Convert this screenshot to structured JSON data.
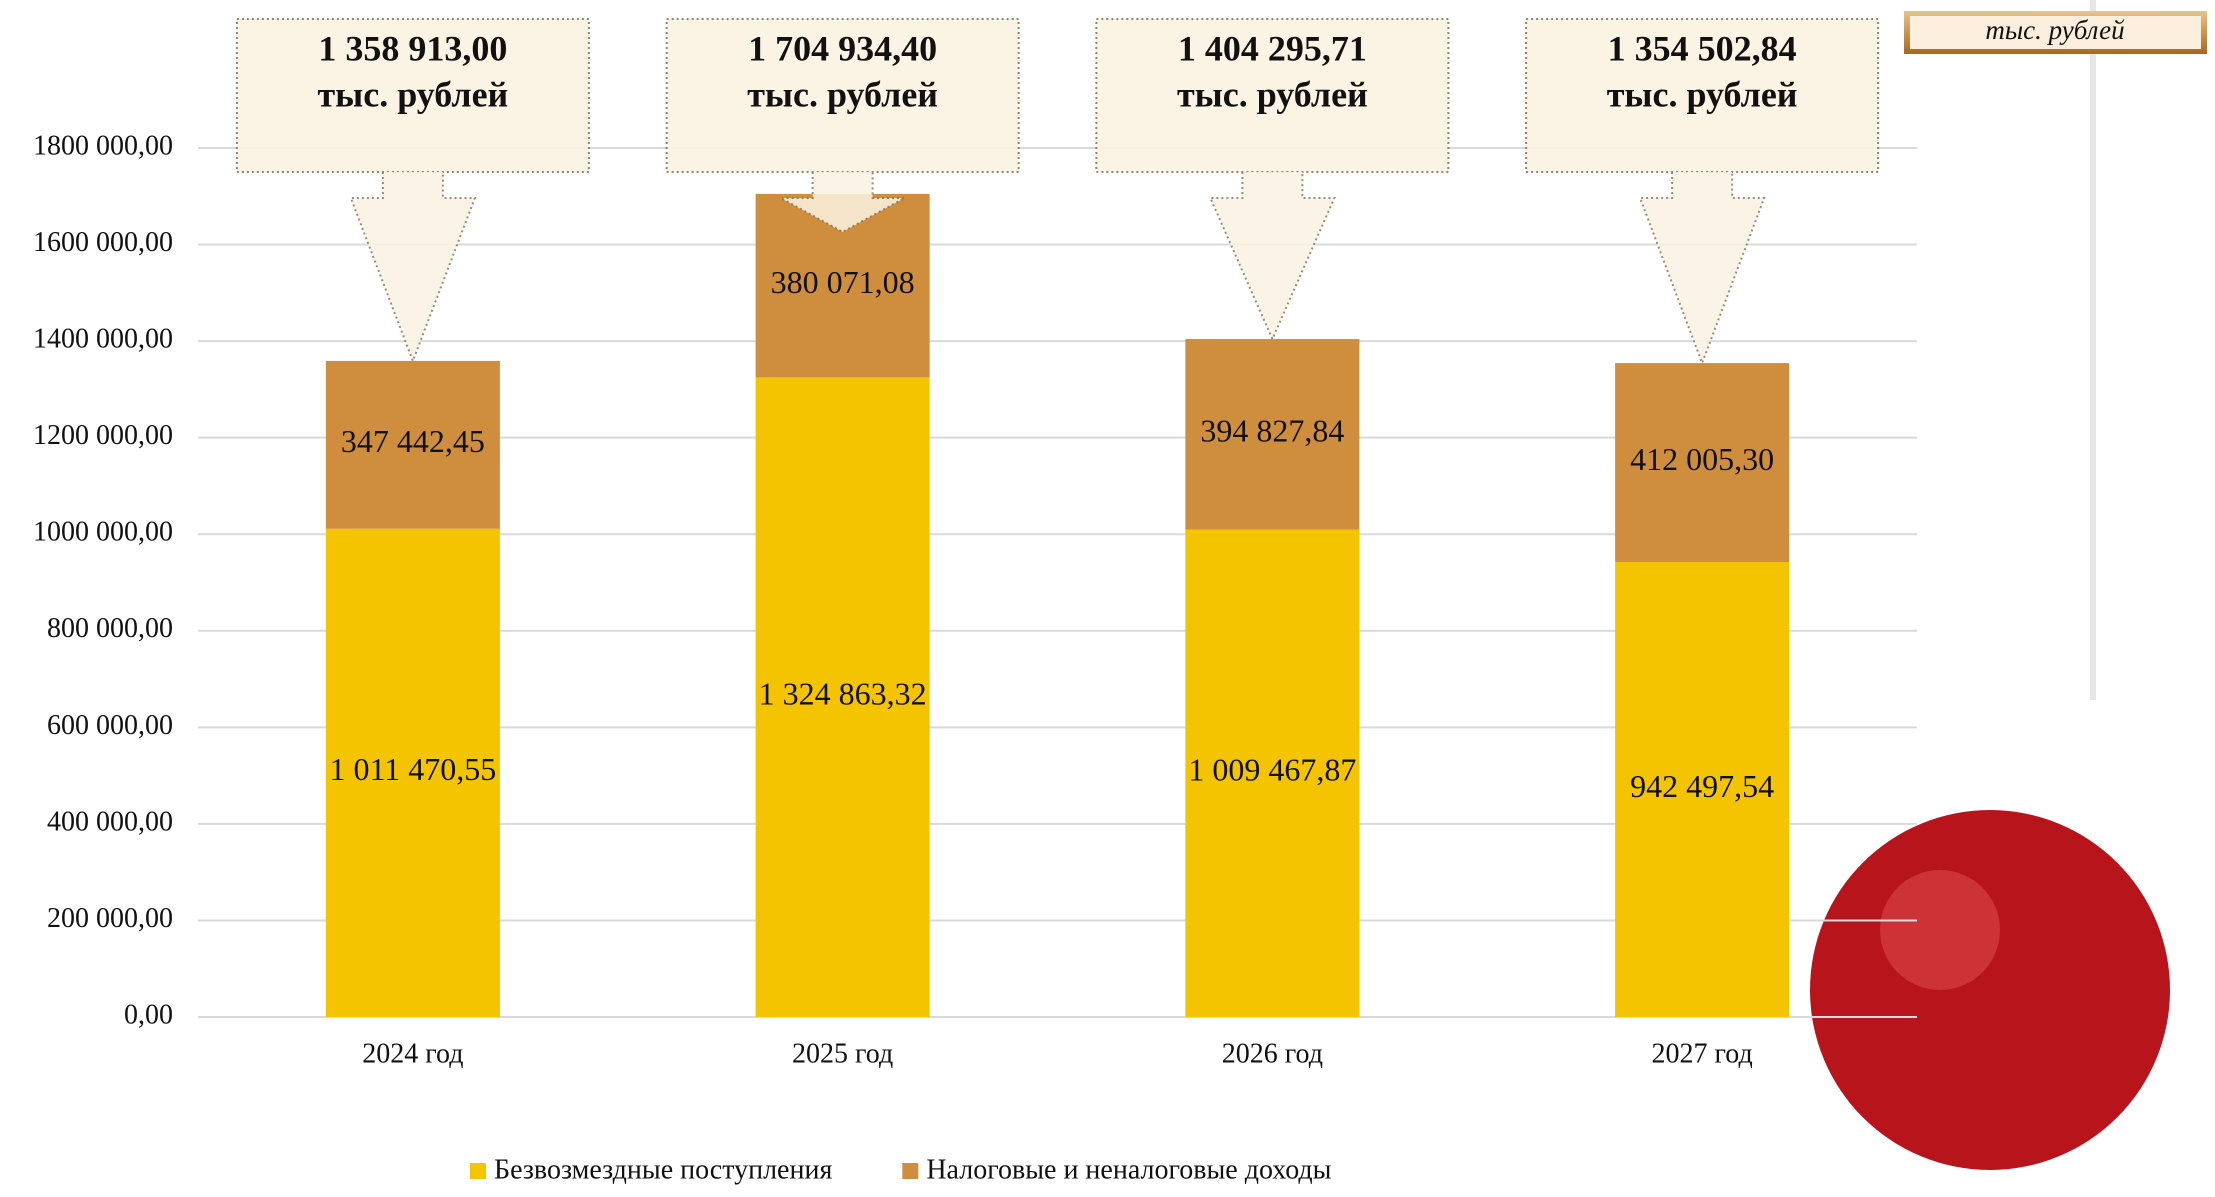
{
  "chart_data": {
    "type": "stacked_bar",
    "unit": "тыс. рублей",
    "categories": [
      "2024 год",
      "2025 год",
      "2026 год",
      "2027 год"
    ],
    "series": [
      {
        "name": "Безвозмездные поступления",
        "color": "#f5c400",
        "values": [
          1011470.55,
          1324863.32,
          1009467.87,
          942497.54
        ],
        "value_labels": [
          "1 011 470,55",
          "1 324 863,32",
          "1 009 467,87",
          "942 497,54"
        ]
      },
      {
        "name": "Налоговые и неналоговые доходы",
        "color": "#cf8e3e",
        "values": [
          347442.45,
          380071.08,
          394827.84,
          412005.3
        ],
        "value_labels": [
          "347 442,45",
          "380 071,08",
          "394 827,84",
          "412 005,30"
        ]
      }
    ],
    "totals": {
      "values": [
        1358913.0,
        1704934.4,
        1404295.71,
        1354502.84
      ],
      "value_labels": [
        "1 358 913,00",
        "1 704 934,40",
        "1 404 295,71",
        "1 354 502,84"
      ]
    },
    "ylim": [
      0,
      1800000
    ],
    "yticks": [
      {
        "value": 0,
        "label": "0,00"
      },
      {
        "value": 200000,
        "label": "200 000,00"
      },
      {
        "value": 400000,
        "label": "400 000,00"
      },
      {
        "value": 600000,
        "label": "600 000,00"
      },
      {
        "value": 800000,
        "label": "800 000,00"
      },
      {
        "value": 1000000,
        "label": "1000 000,00"
      },
      {
        "value": 1200000,
        "label": "1200 000,00"
      },
      {
        "value": 1400000,
        "label": "1400 000,00"
      },
      {
        "value": 1600000,
        "label": "1600 000,00"
      },
      {
        "value": 1800000,
        "label": "1800 000,00"
      }
    ],
    "grid": true
  }
}
